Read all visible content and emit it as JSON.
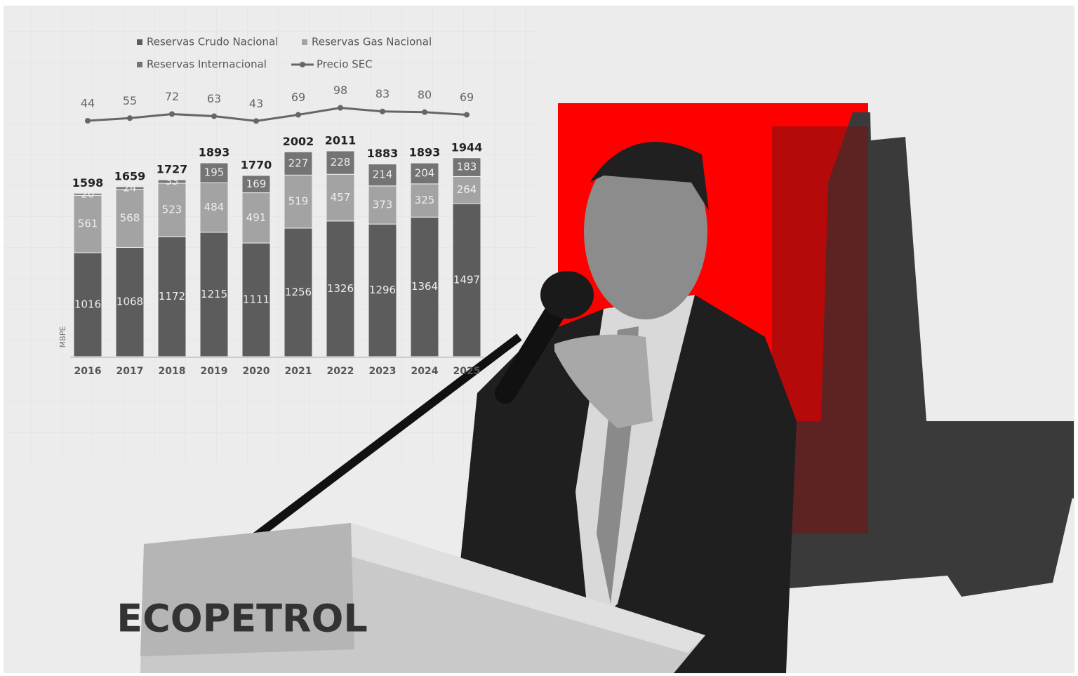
{
  "chart_data": {
    "type": "stacked-bar-line",
    "categories": [
      "2016",
      "2017",
      "2018",
      "2019",
      "2020",
      "2021",
      "2022",
      "2023",
      "2024",
      "2025"
    ],
    "y_label": "MBPE",
    "series": [
      {
        "name": "Reservas Crudo Nacional",
        "color": "#5c5c5c",
        "values": [
          1016,
          1068,
          1172,
          1215,
          1111,
          1256,
          1326,
          1296,
          1364,
          1497
        ]
      },
      {
        "name": "Reservas Gas Nacional",
        "color": "#a3a3a3",
        "values": [
          561,
          568,
          523,
          484,
          491,
          519,
          457,
          373,
          325,
          264
        ]
      },
      {
        "name": "Reservas Internacional",
        "color": "#747474",
        "values": [
          20,
          24,
          33,
          195,
          169,
          227,
          228,
          214,
          204,
          183
        ]
      },
      {
        "name": "Precio SEC",
        "color": "#666666",
        "type": "line",
        "values": [
          44,
          55,
          72,
          63,
          43,
          69,
          98,
          83,
          80,
          69
        ]
      }
    ],
    "totals": [
      1598,
      1659,
      1727,
      1893,
      1770,
      2002,
      2011,
      1883,
      1893,
      1944
    ]
  },
  "image": {
    "logo": "ECOPETROL"
  }
}
